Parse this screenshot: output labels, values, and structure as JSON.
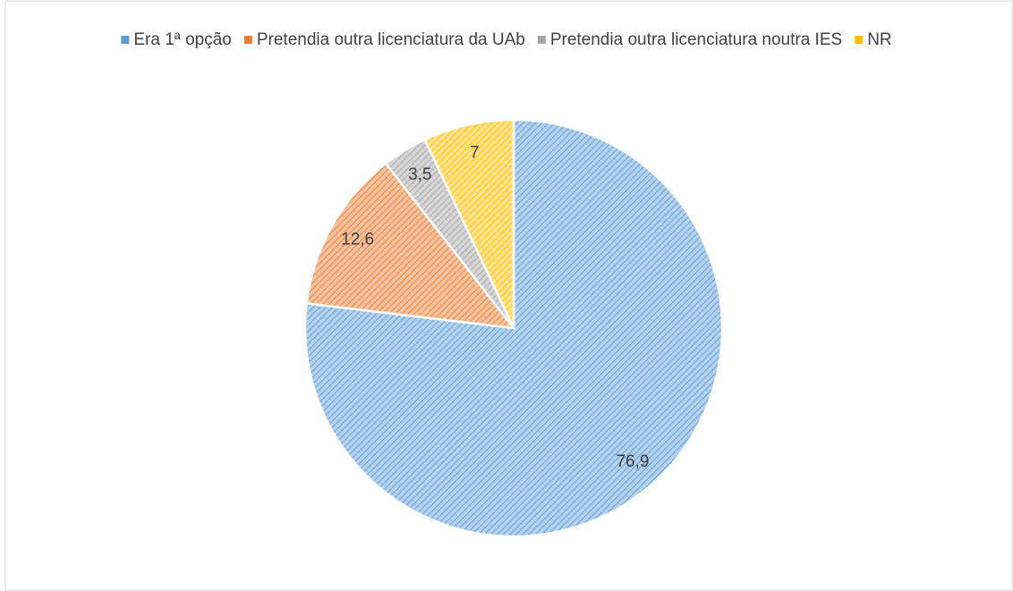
{
  "chart_data": {
    "type": "pie",
    "categories": [
      "Era 1ª opção",
      "Pretendia outra licenciatura da UAb",
      "Pretendia outra licenciatura noutra IES",
      "NR"
    ],
    "values": [
      76.9,
      12.6,
      3.5,
      7
    ],
    "value_labels": [
      "76,9",
      "12,6",
      "3,5",
      "7"
    ],
    "colors": [
      "#5b9bd5",
      "#ed7d31",
      "#a5a5a5",
      "#ffc000"
    ],
    "legend": "top"
  }
}
